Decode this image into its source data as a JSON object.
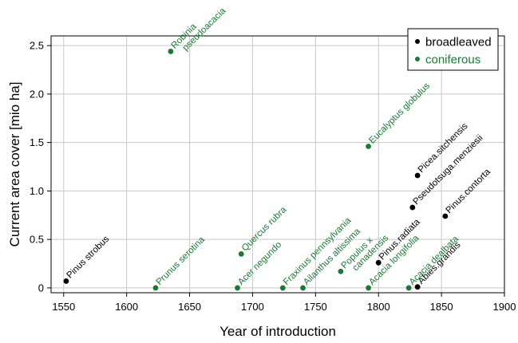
{
  "chart_data": {
    "type": "scatter",
    "title": "",
    "xlabel": "Year of introduction",
    "ylabel": "Current area cover [mio ha]",
    "xlim": [
      1540,
      1900
    ],
    "ylim": [
      -0.05,
      2.6
    ],
    "xticks": [
      1550,
      1600,
      1650,
      1700,
      1750,
      1800,
      1850,
      1900
    ],
    "yticks": [
      0,
      0.5,
      1.0,
      1.5,
      2.0,
      2.5
    ],
    "ytick_labels": [
      "0",
      "0.5",
      "1.0",
      "1.5",
      "2.0",
      "2.5"
    ],
    "grid": true,
    "legend_position": "top-right",
    "series": [
      {
        "name": "broadleaved",
        "color": "#000000",
        "points": [
          {
            "label": "Pinus strobus",
            "x": 1552,
            "y": 0.07
          },
          {
            "label": "Pinus.radiata",
            "x": 1800,
            "y": 0.26
          },
          {
            "label": "Pseudotsuga.menziesii",
            "x": 1827,
            "y": 0.83
          },
          {
            "label": "Picea.sitchensis",
            "x": 1831,
            "y": 1.16
          },
          {
            "label": "Pinus.contorta",
            "x": 1853,
            "y": 0.74
          },
          {
            "label": "Abies.grandis",
            "x": 1831,
            "y": 0.01
          }
        ]
      },
      {
        "name": "coniferous",
        "color": "#1a7a35",
        "points": [
          {
            "label": "Robinia pseudoacacia",
            "x": 1635,
            "y": 2.44
          },
          {
            "label": "Prunus serotina",
            "x": 1623,
            "y": 0.0
          },
          {
            "label": "Quercus rubra",
            "x": 1691,
            "y": 0.35
          },
          {
            "label": "Acer negundo",
            "x": 1688,
            "y": 0.0
          },
          {
            "label": "Fraxinus pennsylvania",
            "x": 1724,
            "y": 0.0
          },
          {
            "label": "Ailanthus altissima",
            "x": 1740,
            "y": 0.0
          },
          {
            "label": "Populus x canadensis",
            "x": 1770,
            "y": 0.17
          },
          {
            "label": "Eucalyptus globulus",
            "x": 1792,
            "y": 1.46
          },
          {
            "label": "Acacia longifolia",
            "x": 1792,
            "y": 0.0
          },
          {
            "label": "Acacia dealbata",
            "x": 1824,
            "y": 0.0
          }
        ]
      }
    ]
  }
}
